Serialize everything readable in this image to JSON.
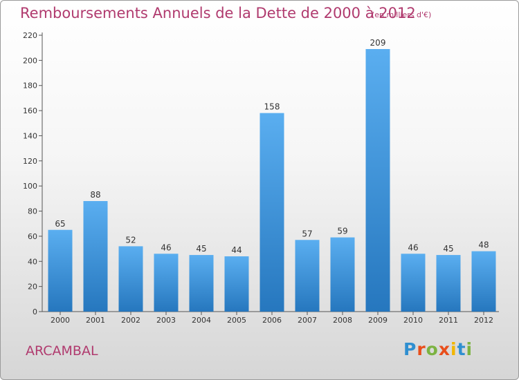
{
  "chart_data": {
    "type": "bar",
    "title": "Remboursements Annuels de la Dette de 2000 à 2012",
    "subtitle": "(en milliers d'€)",
    "categories": [
      "2000",
      "2001",
      "2002",
      "2003",
      "2004",
      "2005",
      "2006",
      "2007",
      "2008",
      "2009",
      "2010",
      "2011",
      "2012"
    ],
    "values": [
      65,
      88,
      52,
      46,
      45,
      44,
      158,
      57,
      59,
      209,
      46,
      45,
      48
    ],
    "ylim": [
      0,
      220
    ],
    "yticks": [
      0,
      20,
      40,
      60,
      80,
      100,
      120,
      140,
      160,
      180,
      200,
      220
    ],
    "grid": false,
    "bar_color": "#3a8fd8",
    "bar_color_light": "#5aaef0",
    "bar_color_dark": "#2677be"
  },
  "footer": {
    "location": "ARCAMBAL",
    "brand": "Proxiti",
    "brand_colors": [
      "#2f8fd0",
      "#e94e1b",
      "#7cb342",
      "#e94e1b",
      "#f2b600",
      "#2f8fd0",
      "#7cb342"
    ]
  }
}
